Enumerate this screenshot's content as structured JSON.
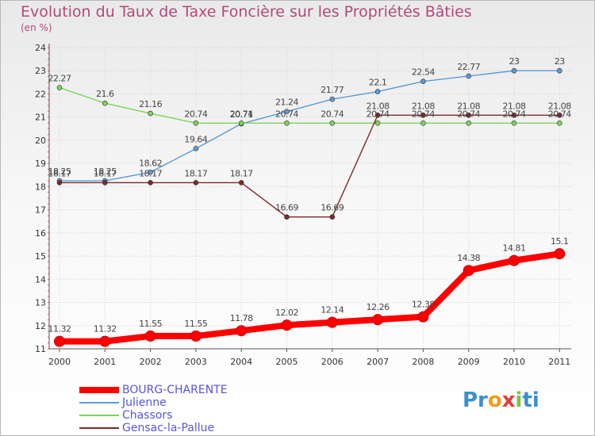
{
  "chart_data": {
    "type": "line",
    "title": "Evolution du Taux de Taxe Foncière sur les Propriétés Bâties",
    "ylabel": "(en %)",
    "xlabel": "",
    "x": [
      "2000",
      "2001",
      "2002",
      "2003",
      "2004",
      "2005",
      "2006",
      "2007",
      "2008",
      "2009",
      "2010",
      "2011"
    ],
    "ylim": [
      11,
      24
    ],
    "yticks": [
      "11",
      "12",
      "13",
      "14",
      "15",
      "16",
      "17",
      "18",
      "19",
      "20",
      "21",
      "22",
      "23",
      "24"
    ],
    "grid": true,
    "legend_position": "bottom-left",
    "series": [
      {
        "name": "BOURG-CHARENTE",
        "color": "#ff0000",
        "values": [
          11.32,
          11.32,
          11.55,
          11.55,
          11.78,
          12.02,
          12.14,
          12.26,
          12.38,
          14.38,
          14.81,
          15.1
        ],
        "labels": [
          "11.32",
          "11.32",
          "11.55",
          "11.55",
          "11.78",
          "12.02",
          "12.14",
          "12.26",
          "12.38",
          "14.38",
          "14.81",
          "15.1"
        ]
      },
      {
        "name": "Julienne",
        "color": "#5b9bd5",
        "values": [
          18.25,
          18.25,
          18.62,
          19.64,
          20.71,
          21.24,
          21.77,
          22.1,
          22.54,
          22.77,
          23,
          23
        ],
        "labels": [
          "18.25",
          "18.25",
          "18.62",
          "19.64",
          "20.71",
          "21.24",
          "21.77",
          "22.1",
          "22.54",
          "22.77",
          "23",
          "23"
        ]
      },
      {
        "name": "Chassors",
        "color": "#7dd35a",
        "values": [
          22.27,
          21.6,
          21.16,
          20.74,
          20.74,
          20.74,
          20.74,
          20.74,
          20.74,
          20.74,
          20.74,
          20.74
        ],
        "labels": [
          "22.27",
          "21.6",
          "21.16",
          "20.74",
          "20.74",
          "20.74",
          "20.74",
          "20.74",
          "20.74",
          "20.74",
          "20.74",
          "20.74"
        ]
      },
      {
        "name": "Gensac-la-Pallue",
        "color": "#7a2a2a",
        "values": [
          18.17,
          18.17,
          18.17,
          18.17,
          18.17,
          16.69,
          16.69,
          21.08,
          21.08,
          21.08,
          21.08,
          21.08
        ],
        "labels": [
          "18.17",
          "18.17",
          "18.17",
          "18.17",
          "18.17",
          "16.69",
          "16.69",
          "21.08",
          "21.08",
          "21.08",
          "21.08",
          "21.08"
        ]
      }
    ]
  },
  "logo": {
    "text_parts": [
      "Pr",
      "o",
      "x",
      "i",
      "ti"
    ],
    "colors": [
      "#3a8fd0",
      "#f39c1e",
      "#e53a3a",
      "#7cc242",
      "#3a8fd0"
    ]
  }
}
